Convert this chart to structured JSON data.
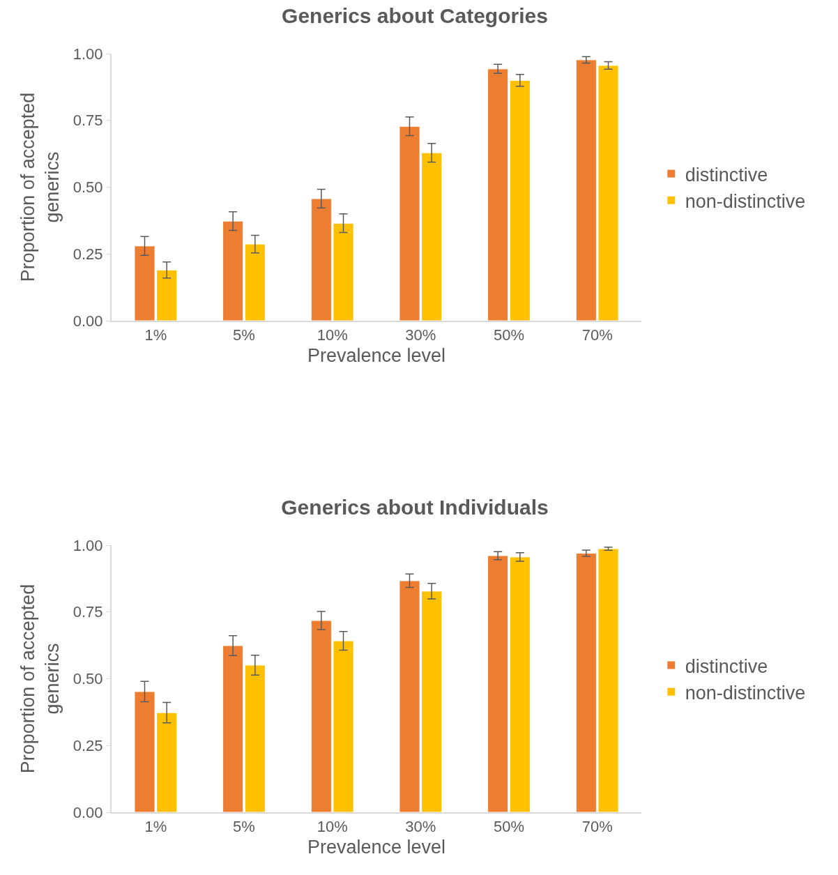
{
  "chart_data": [
    {
      "type": "bar",
      "title": "Generics about Categories",
      "xlabel": "Prevalence level",
      "ylabel": "Proportion of accepted generics",
      "categories": [
        "1%",
        "5%",
        "10%",
        "30%",
        "50%",
        "70%"
      ],
      "series": [
        {
          "name": "distinctive",
          "color": "#ed7d31",
          "values": [
            0.28,
            0.373,
            0.457,
            0.728,
            0.943,
            0.977
          ],
          "errors": [
            0.035,
            0.035,
            0.035,
            0.035,
            0.017,
            0.012
          ]
        },
        {
          "name": "non-distinctive",
          "color": "#ffc000",
          "values": [
            0.19,
            0.287,
            0.365,
            0.629,
            0.9,
            0.956
          ],
          "errors": [
            0.03,
            0.033,
            0.035,
            0.035,
            0.022,
            0.014
          ]
        }
      ],
      "ylim": [
        0,
        1
      ],
      "yticks": [
        {
          "value": 0,
          "label": "0.00"
        },
        {
          "value": 0.25,
          "label": "0.25"
        },
        {
          "value": 0.5,
          "label": "0.50"
        },
        {
          "value": 0.75,
          "label": "0.75"
        },
        {
          "value": 1,
          "label": "1.00"
        }
      ],
      "grid": false,
      "legend": "right"
    },
    {
      "type": "bar",
      "title": "Generics about Individuals",
      "xlabel": "Prevalence level",
      "ylabel": "Proportion of accepted generics",
      "categories": [
        "1%",
        "5%",
        "10%",
        "30%",
        "50%",
        "70%"
      ],
      "series": [
        {
          "name": "distinctive",
          "color": "#ed7d31",
          "values": [
            0.452,
            0.624,
            0.718,
            0.867,
            0.961,
            0.97
          ],
          "errors": [
            0.038,
            0.037,
            0.034,
            0.025,
            0.015,
            0.012
          ]
        },
        {
          "name": "non-distinctive",
          "color": "#ffc000",
          "values": [
            0.373,
            0.551,
            0.642,
            0.828,
            0.956,
            0.987
          ],
          "errors": [
            0.038,
            0.037,
            0.035,
            0.029,
            0.016,
            0.006
          ]
        }
      ],
      "ylim": [
        0,
        1
      ],
      "yticks": [
        {
          "value": 0,
          "label": "0.00"
        },
        {
          "value": 0.25,
          "label": "0.25"
        },
        {
          "value": 0.5,
          "label": "0.50"
        },
        {
          "value": 0.75,
          "label": "0.75"
        },
        {
          "value": 1,
          "label": "1.00"
        }
      ],
      "grid": false,
      "legend": "right"
    }
  ]
}
